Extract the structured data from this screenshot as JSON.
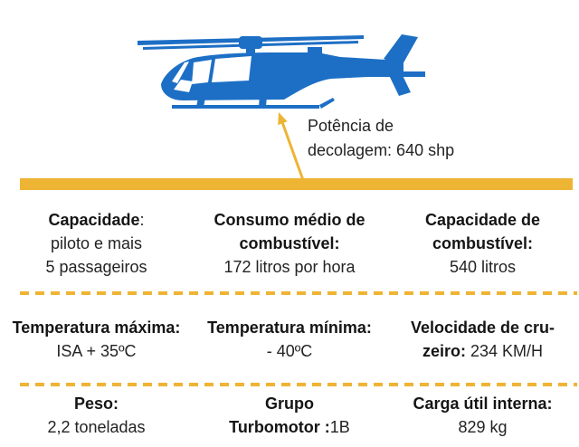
{
  "colors": {
    "blue": "#1d6fc5",
    "yellow": "#eeb434",
    "text": "#232323"
  },
  "illustration": {
    "subject": "helicopter-silhouette"
  },
  "callout": {
    "line1": "Potência de",
    "line2": "decolagem: 640 shp",
    "value": "640 shp",
    "label": "Potência de decolagem"
  },
  "spec_rows": [
    {
      "cells": [
        {
          "lines": [
            [
              {
                "t": "Capacidade",
                "b": true
              },
              {
                "t": ":",
                "b": false
              }
            ],
            [
              {
                "t": "piloto e mais",
                "b": false
              }
            ],
            [
              {
                "t": "5 passageiros",
                "b": false
              }
            ]
          ]
        },
        {
          "lines": [
            [
              {
                "t": "Consumo médio de",
                "b": true
              }
            ],
            [
              {
                "t": "combustível:",
                "b": true
              }
            ],
            [
              {
                "t": "172 litros por hora",
                "b": false
              }
            ]
          ]
        },
        {
          "lines": [
            [
              {
                "t": "Capacidade de",
                "b": true
              }
            ],
            [
              {
                "t": "combustível:",
                "b": true
              }
            ],
            [
              {
                "t": "540 litros",
                "b": false
              }
            ]
          ]
        }
      ]
    },
    {
      "cells": [
        {
          "lines": [
            [
              {
                "t": "Temperatura máxima:",
                "b": true
              }
            ],
            [
              {
                "t": "ISA + 35ºC",
                "b": false
              }
            ]
          ]
        },
        {
          "lines": [
            [
              {
                "t": "Temperatura mínima:",
                "b": true
              }
            ],
            [
              {
                "t": "- 40ºC",
                "b": false
              }
            ]
          ]
        },
        {
          "lines": [
            [
              {
                "t": "Velocidade de cru-",
                "b": true
              }
            ],
            [
              {
                "t": "zeiro:",
                "b": true
              },
              {
                "t": " 234 KM/H",
                "b": false
              }
            ]
          ]
        }
      ]
    },
    {
      "cells": [
        {
          "lines": [
            [
              {
                "t": "Peso:",
                "b": true
              }
            ],
            [
              {
                "t": "2,2 toneladas",
                "b": false
              }
            ]
          ]
        },
        {
          "lines": [
            [
              {
                "t": "Grupo",
                "b": true
              }
            ],
            [
              {
                "t": "Turbomotor :",
                "b": true
              },
              {
                "t": "1B",
                "b": false
              }
            ]
          ]
        },
        {
          "lines": [
            [
              {
                "t": "Carga útil interna:",
                "b": true
              }
            ],
            [
              {
                "t": "829 kg",
                "b": false
              }
            ]
          ]
        }
      ]
    }
  ]
}
